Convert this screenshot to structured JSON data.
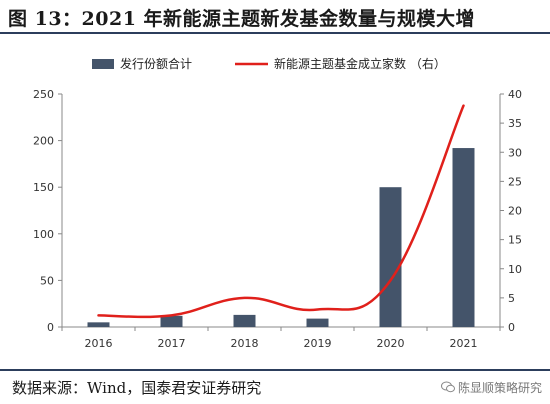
{
  "title": "图 13：2021 年新能源主题新发基金数量与规模大增",
  "source": "数据来源：Wind，国泰君安证券研究",
  "watermark": "陈显顺策略研究",
  "chart_data": {
    "type": "bar",
    "categories": [
      "2016",
      "2017",
      "2018",
      "2019",
      "2020",
      "2021"
    ],
    "series": [
      {
        "name": "发行份额合计",
        "type": "bar",
        "axis": "left",
        "color": "#44546a",
        "values": [
          5,
          12,
          13,
          9,
          150,
          192
        ]
      },
      {
        "name": "新能源主题基金成立家数 （右）",
        "type": "line",
        "axis": "right",
        "color": "#e0201b",
        "values": [
          2,
          2,
          5,
          3,
          8,
          38
        ]
      }
    ],
    "y_left": {
      "lim": [
        0,
        250
      ],
      "ticks": [
        0,
        50,
        100,
        150,
        200,
        250
      ]
    },
    "y_right": {
      "lim": [
        0,
        40
      ],
      "ticks": [
        0,
        5,
        10,
        15,
        20,
        25,
        30,
        35,
        40
      ]
    },
    "legend": "top",
    "grid": false
  }
}
